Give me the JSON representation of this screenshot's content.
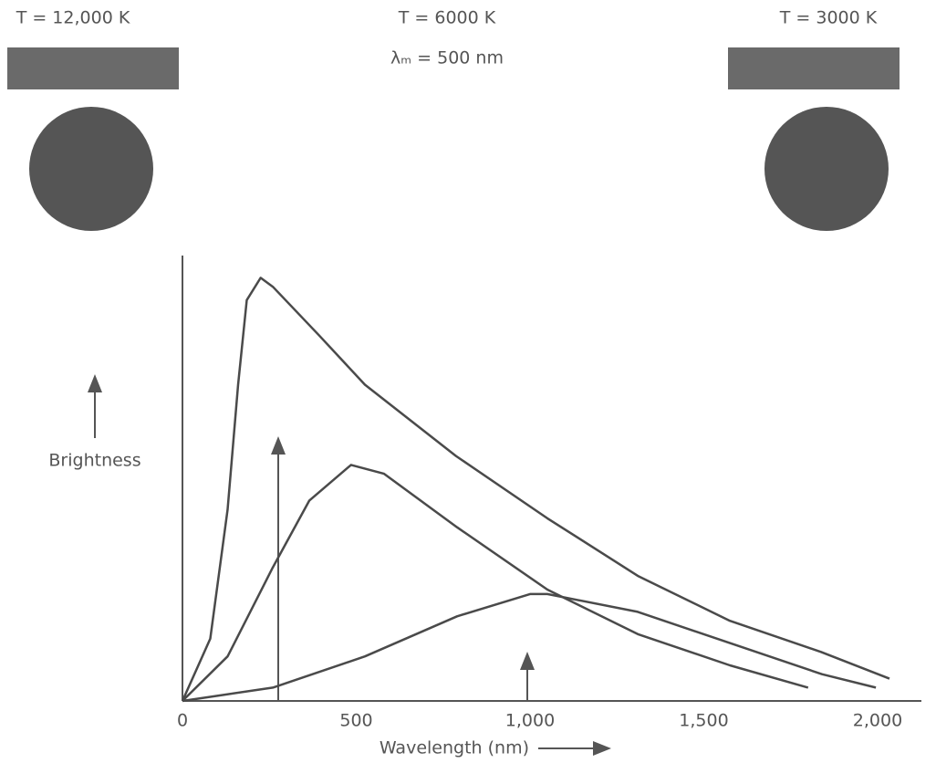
{
  "chart_data": {
    "type": "line",
    "annotations": [
      "T = 12,000 K",
      "T = 6000 K",
      "λₘ = 500 nm",
      "T = 3000 K"
    ],
    "xlabel": "Wavelength (nm)",
    "ylabel": "Brightness",
    "xlim": [
      0,
      2100
    ],
    "ylim": [
      0,
      100
    ],
    "xticks": [
      0,
      500,
      {
        "value": 1000,
        "label": "1,000"
      },
      {
        "value": 1500,
        "label": "1,500"
      },
      {
        "value": 2000,
        "label": "2,000"
      }
    ],
    "series": [
      {
        "color": "#4a4a4a",
        "x": [
          0,
          80,
          130,
          160,
          185,
          225,
          260,
          394,
          525,
          787,
          1050,
          1312,
          1575,
          1837,
          2034
        ],
        "values": [
          0,
          14,
          43,
          71,
          90,
          95,
          93,
          82,
          71,
          55,
          41,
          28,
          18,
          11,
          5
        ]
      },
      {
        "color": "#4a4a4a",
        "x": [
          0,
          130,
          260,
          365,
          485,
          580,
          790,
          1050,
          1310,
          1575,
          1800
        ],
        "values": [
          0,
          10,
          30,
          45,
          53,
          51,
          39,
          25,
          15,
          8,
          3
        ]
      },
      {
        "color": "#4a4a4a",
        "x": [
          0,
          260,
          525,
          790,
          1000,
          1050,
          1310,
          1575,
          1840,
          1995
        ],
        "values": [
          0,
          3,
          10,
          19,
          24,
          24,
          20,
          13,
          6,
          3
        ]
      }
    ]
  }
}
